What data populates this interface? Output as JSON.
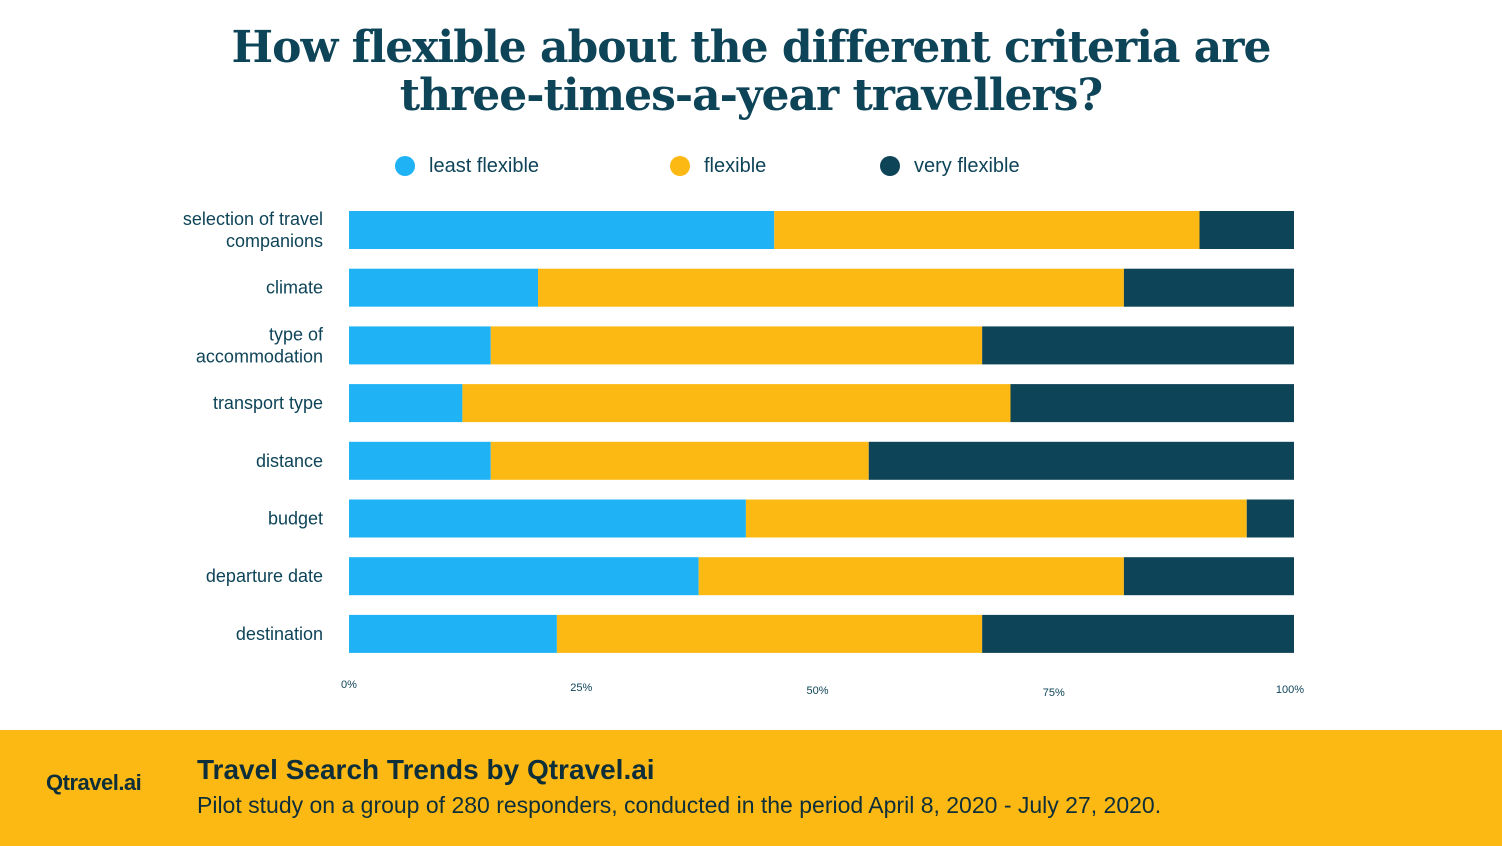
{
  "title_lines": [
    "How flexible about the different criteria are",
    "three-times-a-year travellers?"
  ],
  "colors": {
    "least": "#1fb3f5",
    "flexible": "#fdb913",
    "very": "#0e4458",
    "text": "#0e4458"
  },
  "chart_data": {
    "type": "bar",
    "orientation": "horizontal",
    "stacked": true,
    "title": "How flexible about the different criteria are three-times-a-year travellers?",
    "categories": [
      [
        "selection of travel",
        "companions"
      ],
      [
        "climate"
      ],
      [
        "type of",
        "accommodation"
      ],
      [
        "transport type"
      ],
      [
        "distance"
      ],
      [
        "budget"
      ],
      [
        "departure date"
      ],
      [
        "destination"
      ]
    ],
    "series": [
      {
        "name": "least flexible",
        "color": "#1fb3f5",
        "values": [
          45,
          20,
          15,
          12,
          15,
          42,
          37,
          22
        ]
      },
      {
        "name": "flexible",
        "color": "#fdb913",
        "values": [
          45,
          62,
          52,
          58,
          40,
          53,
          45,
          45
        ]
      },
      {
        "name": "very flexible",
        "color": "#0e4458",
        "values": [
          10,
          18,
          33,
          30,
          45,
          5,
          18,
          33
        ]
      }
    ],
    "x_ticks": [
      "0%",
      "25%",
      "50%",
      "75%",
      "100%"
    ],
    "xlim": [
      0,
      100
    ],
    "legend_position": "top"
  },
  "footer": {
    "brand": "Qtravel.ai",
    "title": "Travel Search Trends by Qtravel.ai",
    "subtitle": "Pilot study on a group of 280 responders, conducted in the period April 8, 2020 - July 27, 2020."
  }
}
